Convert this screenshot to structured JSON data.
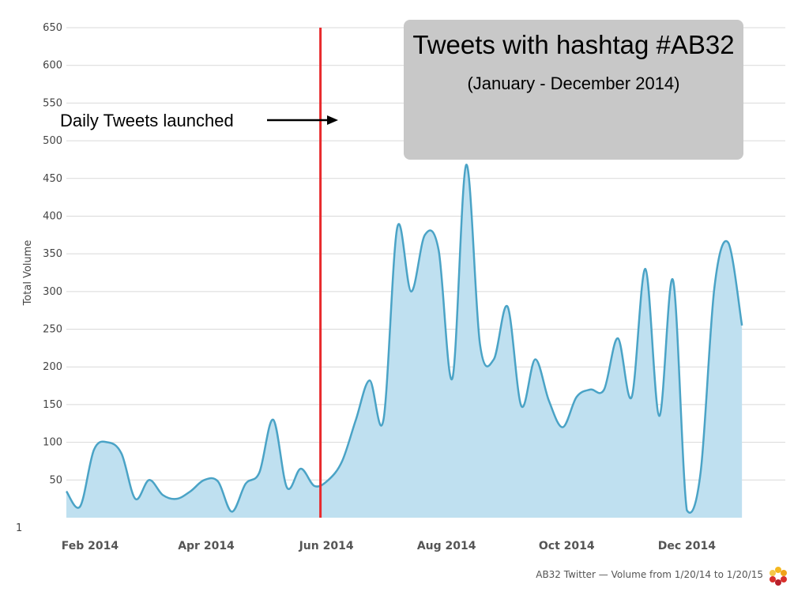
{
  "chart_data": {
    "type": "area",
    "title": "Tweets with hashtag #AB32",
    "subtitle": "(January - December 2014)",
    "ylabel": "Total Volume",
    "xlabel": "",
    "ylim": [
      0,
      650
    ],
    "yticks": [
      50,
      100,
      150,
      200,
      250,
      300,
      350,
      400,
      450,
      500,
      550,
      600,
      650
    ],
    "extra_y_label": "1",
    "xticks": [
      {
        "label": "Feb 2014",
        "date": "2014-02-01"
      },
      {
        "label": "Apr 2014",
        "date": "2014-04-01"
      },
      {
        "label": "Jun 2014",
        "date": "2014-06-01"
      },
      {
        "label": "Aug 2014",
        "date": "2014-08-01"
      },
      {
        "label": "Oct 2014",
        "date": "2014-10-01"
      },
      {
        "label": "Dec 2014",
        "date": "2014-12-01"
      }
    ],
    "xrange": [
      "2014-01-20",
      "2015-01-20"
    ],
    "grid": true,
    "series": [
      {
        "color": "#4aa3c6",
        "fill": "#bfe0f0",
        "points": [
          [
            "2014-01-20",
            35
          ],
          [
            "2014-01-27",
            15
          ],
          [
            "2014-02-03",
            90
          ],
          [
            "2014-02-10",
            100
          ],
          [
            "2014-02-17",
            85
          ],
          [
            "2014-02-24",
            25
          ],
          [
            "2014-03-03",
            50
          ],
          [
            "2014-03-10",
            30
          ],
          [
            "2014-03-17",
            25
          ],
          [
            "2014-03-24",
            35
          ],
          [
            "2014-03-31",
            50
          ],
          [
            "2014-04-07",
            48
          ],
          [
            "2014-04-14",
            8
          ],
          [
            "2014-04-21",
            45
          ],
          [
            "2014-04-28",
            60
          ],
          [
            "2014-05-05",
            130
          ],
          [
            "2014-05-12",
            40
          ],
          [
            "2014-05-19",
            65
          ],
          [
            "2014-05-26",
            42
          ],
          [
            "2014-06-02",
            50
          ],
          [
            "2014-06-09",
            75
          ],
          [
            "2014-06-16",
            130
          ],
          [
            "2014-06-23",
            182
          ],
          [
            "2014-06-30",
            130
          ],
          [
            "2014-07-07",
            385
          ],
          [
            "2014-07-14",
            300
          ],
          [
            "2014-07-21",
            375
          ],
          [
            "2014-07-28",
            355
          ],
          [
            "2014-08-04",
            185
          ],
          [
            "2014-08-11",
            468
          ],
          [
            "2014-08-18",
            230
          ],
          [
            "2014-08-25",
            210
          ],
          [
            "2014-09-01",
            280
          ],
          [
            "2014-09-08",
            148
          ],
          [
            "2014-09-15",
            210
          ],
          [
            "2014-09-22",
            155
          ],
          [
            "2014-09-29",
            120
          ],
          [
            "2014-10-06",
            160
          ],
          [
            "2014-10-13",
            170
          ],
          [
            "2014-10-20",
            170
          ],
          [
            "2014-10-27",
            238
          ],
          [
            "2014-11-03",
            160
          ],
          [
            "2014-11-10",
            330
          ],
          [
            "2014-11-17",
            135
          ],
          [
            "2014-11-24",
            315
          ],
          [
            "2014-12-01",
            10
          ],
          [
            "2014-12-08",
            60
          ],
          [
            "2014-12-15",
            305
          ],
          [
            "2014-12-22",
            365
          ],
          [
            "2014-12-29",
            255
          ]
        ]
      }
    ],
    "marker_line": {
      "date": "2014-05-29",
      "color": "#e8292c"
    },
    "annotation": "Daily Tweets launched",
    "footer": "AB32 Twitter — Volume from 1/20/14 to 1/20/15"
  }
}
